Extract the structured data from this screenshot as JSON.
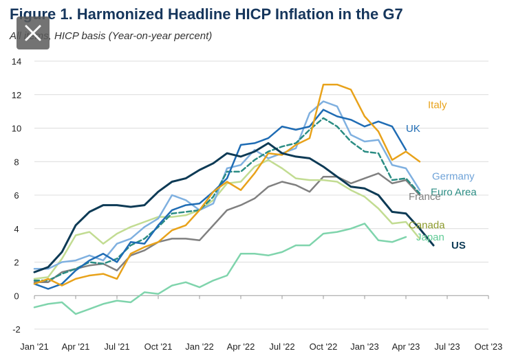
{
  "title": "Figure 1. Harmonized Headline HICP Inflation in the G7",
  "subtitle": "All items, HICP basis (Year-on-year percent)",
  "close_button": {
    "icon": "close-icon"
  },
  "chart_data": {
    "type": "line",
    "title": "Figure 1. Harmonized Headline HICP Inflation in the G7",
    "subtitle": "All items, HICP basis (Year-on-year percent)",
    "xlabel": "",
    "ylabel": "",
    "ylim": [
      -2,
      14
    ],
    "yticks": [
      -2,
      0,
      2,
      4,
      6,
      8,
      10,
      12,
      14
    ],
    "xtick_labels": [
      "Jan '21",
      "Apr '21",
      "Jul '21",
      "Oct '21",
      "Jan '22",
      "Apr '22",
      "Jul '22",
      "Oct '22",
      "Jan '23",
      "Apr '23",
      "Jul '23",
      "Oct '23"
    ],
    "x_months": "monthly from Jan 2021 (index 0) to Oct 2023 (index 33)",
    "grid": true,
    "legend": "direct labels at line ends",
    "series": [
      {
        "name": "US",
        "label": "US",
        "color": "#0d3a55",
        "dashed": false,
        "width": 3,
        "values": [
          1.4,
          1.7,
          2.6,
          4.2,
          5.0,
          5.4,
          5.4,
          5.3,
          5.4,
          6.2,
          6.8,
          7.0,
          7.5,
          7.9,
          8.5,
          8.3,
          8.6,
          9.1,
          8.5,
          8.3,
          8.2,
          7.7,
          7.1,
          6.5,
          6.4,
          6.0,
          5.0,
          4.9,
          4.0,
          3.0
        ]
      },
      {
        "name": "UK",
        "label": "UK",
        "color": "#1f6cb4",
        "dashed": false,
        "width": 2.5,
        "values": [
          0.7,
          0.4,
          0.7,
          1.5,
          2.1,
          2.5,
          2.0,
          3.2,
          3.1,
          4.2,
          5.1,
          5.4,
          5.5,
          6.2,
          7.0,
          9.0,
          9.1,
          9.4,
          10.1,
          9.9,
          10.1,
          11.1,
          10.7,
          10.5,
          10.1,
          10.4,
          10.1,
          8.7
        ]
      },
      {
        "name": "Germany",
        "label": "Germany",
        "color": "#7fb0e0",
        "dashed": false,
        "width": 2.5,
        "values": [
          1.6,
          1.6,
          2.0,
          2.1,
          2.4,
          2.1,
          3.1,
          3.4,
          4.1,
          4.6,
          6.0,
          5.7,
          5.1,
          5.5,
          7.6,
          7.8,
          8.7,
          8.2,
          8.5,
          8.8,
          10.9,
          11.6,
          11.3,
          9.6,
          9.2,
          9.3,
          7.8,
          7.6,
          6.3
        ]
      },
      {
        "name": "Euro Area",
        "label": "Euro Area",
        "color": "#2a8c83",
        "dashed": true,
        "width": 2.5,
        "values": [
          0.9,
          0.9,
          1.3,
          1.6,
          2.0,
          1.9,
          2.2,
          3.0,
          3.4,
          4.1,
          4.9,
          5.0,
          5.1,
          5.9,
          7.4,
          7.4,
          8.1,
          8.6,
          8.9,
          9.1,
          9.9,
          10.6,
          10.1,
          9.2,
          8.6,
          8.5,
          6.9,
          7.0,
          6.1
        ]
      },
      {
        "name": "Italy",
        "label": "Italy",
        "color": "#e8a21a",
        "dashed": false,
        "width": 2.5,
        "values": [
          0.7,
          1.0,
          0.6,
          1.0,
          1.2,
          1.3,
          1.0,
          2.5,
          2.9,
          3.2,
          3.9,
          4.2,
          5.1,
          6.2,
          6.8,
          6.3,
          7.3,
          8.5,
          8.4,
          9.0,
          9.4,
          12.6,
          12.6,
          12.3,
          10.7,
          9.8,
          8.1,
          8.6,
          8.0
        ]
      },
      {
        "name": "France",
        "label": "France",
        "color": "#808080",
        "dashed": false,
        "width": 2.5,
        "values": [
          0.8,
          0.8,
          1.4,
          1.6,
          1.8,
          1.9,
          1.5,
          2.4,
          2.7,
          3.2,
          3.4,
          3.4,
          3.3,
          4.2,
          5.1,
          5.4,
          5.8,
          6.5,
          6.8,
          6.6,
          6.2,
          7.1,
          7.1,
          6.7,
          7.0,
          7.3,
          6.7,
          6.9,
          6.0
        ]
      },
      {
        "name": "Canada",
        "label": "Canada",
        "color": "#c2dc92",
        "dashed": false,
        "width": 2.5,
        "values": [
          1.0,
          1.1,
          2.2,
          3.6,
          3.8,
          3.1,
          3.7,
          4.1,
          4.4,
          4.7,
          4.7,
          4.8,
          5.1,
          5.7,
          6.7,
          6.8,
          7.7,
          8.1,
          7.6,
          7.0,
          6.9,
          6.9,
          6.8,
          6.3,
          5.9,
          5.2,
          4.3,
          4.4,
          3.4
        ]
      },
      {
        "name": "Japan",
        "label": "Japan",
        "color": "#7fd4ac",
        "dashed": false,
        "width": 2.5,
        "values": [
          -0.7,
          -0.5,
          -0.4,
          -1.1,
          -0.8,
          -0.5,
          -0.3,
          -0.4,
          0.2,
          0.1,
          0.6,
          0.8,
          0.5,
          0.9,
          1.2,
          2.5,
          2.5,
          2.4,
          2.6,
          3.0,
          3.0,
          3.7,
          3.8,
          4.0,
          4.3,
          3.3,
          3.2,
          3.5
        ]
      }
    ],
    "label_colors": {
      "US": "#0d3a55",
      "UK": "#1f6cb4",
      "Germany": "#6fa3d8",
      "Euro Area": "#2a8c83",
      "Italy": "#e8a21a",
      "France": "#7f7f7f",
      "Canada": "#8c9a2c",
      "Japan": "#5fcb95"
    }
  }
}
